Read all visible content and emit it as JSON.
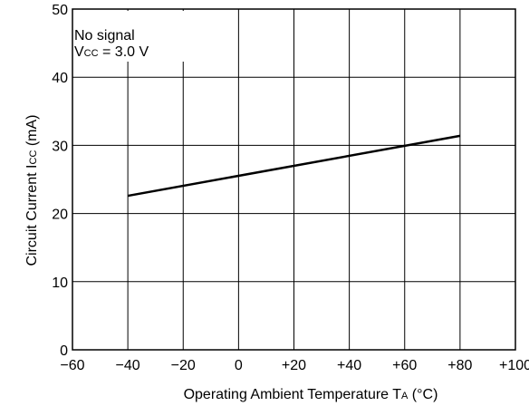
{
  "chart_data": {
    "type": "line",
    "xlabel": {
      "main": "Operating Ambient Temperature  T",
      "sub": "A",
      "suffix": " (°C)"
    },
    "ylabel": {
      "main": "Circuit Current  I",
      "sub": "CC",
      "suffix": " (mA)"
    },
    "xlim": [
      -60,
      100
    ],
    "ylim": [
      0,
      50
    ],
    "x_ticks": [
      -60,
      -40,
      -20,
      0,
      20,
      40,
      60,
      80,
      100
    ],
    "x_tick_labels": [
      "−60",
      "−40",
      "−20",
      "0",
      "+20",
      "+40",
      "+60",
      "+80",
      "+100"
    ],
    "y_ticks": [
      0,
      10,
      20,
      30,
      40,
      50
    ],
    "y_tick_labels": [
      "0",
      "10",
      "20",
      "30",
      "40",
      "50"
    ],
    "grid": true,
    "annotation": {
      "line1": "No signal",
      "line2_main": "V",
      "line2_sub": "CC",
      "line2_rest": " = 3.0 V"
    },
    "series": [
      {
        "x": [
          -40,
          80
        ],
        "y": [
          22.6,
          31.4
        ]
      }
    ]
  }
}
